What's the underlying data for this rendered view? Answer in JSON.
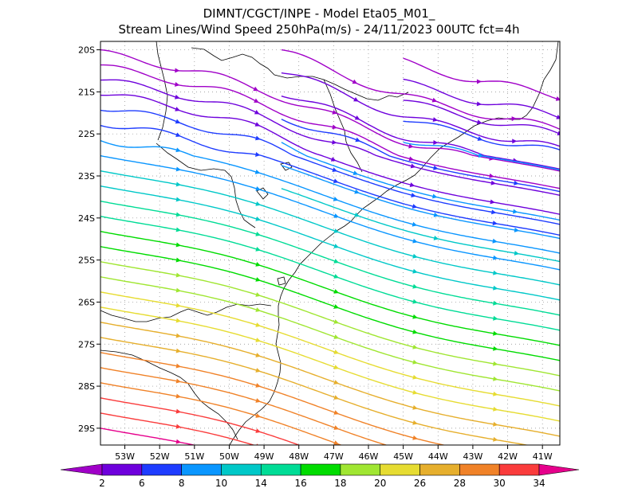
{
  "chart_data": {
    "type": "streamline-map",
    "title": "DIMNT/CGCT/INPE -  Model Eta05_M01_",
    "subtitle": "Stream Lines/Wind Speed 250hPa(m/s) -  24/11/2023 00UTC fct=4h",
    "units": "m/s",
    "level": "250hPa",
    "lon_ticks": [
      "53W",
      "52W",
      "51W",
      "50W",
      "49W",
      "48W",
      "47W",
      "46W",
      "45W",
      "44W",
      "43W",
      "42W",
      "41W"
    ],
    "lat_ticks": [
      "20S",
      "21S",
      "22S",
      "23S",
      "24S",
      "25S",
      "26S",
      "27S",
      "28S",
      "29S"
    ],
    "lon_range": [
      -53.7,
      -40.5
    ],
    "lat_range": [
      -29.4,
      -19.8
    ],
    "colorbar": {
      "labels": [
        "2",
        "6",
        "8",
        "10",
        "14",
        "16",
        "18",
        "20",
        "26",
        "28",
        "30",
        "34"
      ],
      "colors": [
        "#a000c8",
        "#6e00dc",
        "#1e3cff",
        "#0a96ff",
        "#00c8c8",
        "#00dc96",
        "#00dc00",
        "#a0e632",
        "#e6dc32",
        "#e6af2d",
        "#f08228",
        "#fa3c3c",
        "#e6008c"
      ]
    },
    "flow_direction": "eastward to east-southeastward",
    "speed_gradient": "increasing southward, weak (2-6 m/s) near 20S-22S, strong (30-34 m/s) near 29S"
  }
}
